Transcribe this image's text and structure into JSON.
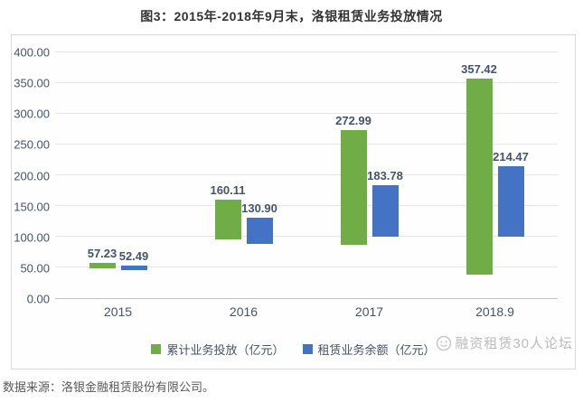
{
  "page": {
    "title": "图3：2015年-2018年9月末，洛银租赁业务投放情况",
    "source_note": "数据来源：洛银金融租赁股份有限公司。",
    "watermark_text": "融资租赁30人论坛"
  },
  "chart_data": {
    "type": "bar",
    "title": "图3：2015年-2018年9月末，洛银租赁业务投放情况",
    "categories": [
      "2015",
      "2016",
      "2017",
      "2018.9"
    ],
    "series": [
      {
        "name": "累计业务投放（亿元）",
        "color": "#70AD47",
        "values": [
          57.23,
          160.11,
          272.99,
          357.42
        ]
      },
      {
        "name": "租赁业务余额（亿元）",
        "color": "#4472C4",
        "values": [
          52.49,
          130.9,
          183.78,
          214.47
        ]
      }
    ],
    "ylim": [
      0,
      400
    ],
    "ytick_step": 50,
    "ytick_decimals": 2,
    "grid": true,
    "legend_position": "bottom",
    "colors": {
      "axis_text": "#44546A",
      "data_label": "#44546A",
      "gridline": "#E5E5EA",
      "axis_line": "#C3C3C9",
      "frame_border": "#D9D9D9"
    }
  }
}
